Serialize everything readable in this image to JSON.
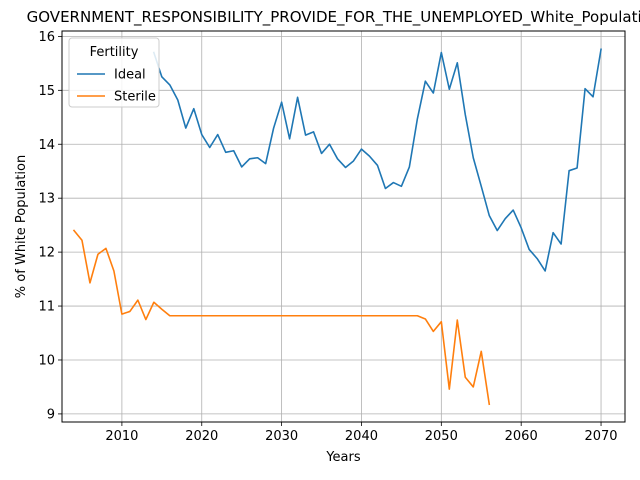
{
  "chart_data": {
    "type": "line",
    "title": "GOVERNMENT_RESPONSIBILITY_PROVIDE_FOR_THE_UNEMPLOYED_White_Population",
    "xlabel": "Years",
    "ylabel": "% of White Population",
    "xlim": [
      2002.5,
      2073.0
    ],
    "ylim": [
      8.85,
      16.1
    ],
    "xticks": [
      2010,
      2020,
      2030,
      2040,
      2050,
      2060,
      2070
    ],
    "yticks": [
      9,
      10,
      11,
      12,
      13,
      14,
      15,
      16
    ],
    "grid": true,
    "legend": {
      "title": "Fertility",
      "placement": "upper-left"
    },
    "series": [
      {
        "name": "Ideal",
        "color": "#1f77b4",
        "x": [
          2014,
          2015,
          2016,
          2017,
          2018,
          2019,
          2020,
          2021,
          2022,
          2023,
          2024,
          2025,
          2026,
          2027,
          2028,
          2029,
          2030,
          2031,
          2032,
          2033,
          2034,
          2035,
          2036,
          2037,
          2038,
          2039,
          2040,
          2041,
          2042,
          2043,
          2044,
          2045,
          2046,
          2047,
          2048,
          2049,
          2050,
          2051,
          2052,
          2053,
          2054,
          2055,
          2056,
          2057,
          2058,
          2059,
          2060,
          2061,
          2062,
          2063,
          2064,
          2065,
          2066,
          2067,
          2068,
          2069,
          2070
        ],
        "y": [
          15.7,
          15.25,
          15.1,
          14.82,
          14.3,
          14.66,
          14.18,
          13.94,
          14.18,
          13.85,
          13.88,
          13.58,
          13.73,
          13.75,
          13.64,
          14.3,
          14.78,
          14.1,
          14.87,
          14.17,
          14.23,
          13.83,
          14.0,
          13.73,
          13.57,
          13.69,
          13.91,
          13.78,
          13.61,
          13.18,
          13.29,
          13.22,
          13.58,
          14.47,
          15.17,
          14.95,
          15.7,
          15.02,
          15.51,
          14.55,
          13.75,
          13.22,
          12.68,
          12.4,
          12.62,
          12.78,
          12.45,
          12.05,
          11.88,
          11.65,
          12.36,
          12.15,
          13.51,
          13.56,
          15.03,
          14.88,
          15.76
        ]
      },
      {
        "name": "Sterile",
        "color": "#ff7f0e",
        "x": [
          2004,
          2005,
          2006,
          2007,
          2008,
          2009,
          2010,
          2011,
          2012,
          2013,
          2014,
          2015,
          2016,
          2017,
          2018,
          2019,
          2020,
          2021,
          2022,
          2023,
          2024,
          2025,
          2026,
          2027,
          2028,
          2029,
          2030,
          2031,
          2032,
          2033,
          2034,
          2035,
          2036,
          2037,
          2038,
          2039,
          2040,
          2041,
          2042,
          2043,
          2044,
          2045,
          2046,
          2047,
          2048,
          2049,
          2050,
          2051,
          2052,
          2053,
          2054,
          2055,
          2056
        ],
        "y": [
          12.4,
          12.22,
          11.43,
          11.96,
          12.07,
          11.65,
          10.85,
          10.9,
          11.11,
          10.75,
          11.07,
          10.94,
          10.82,
          10.82,
          10.82,
          10.82,
          10.82,
          10.82,
          10.82,
          10.82,
          10.82,
          10.82,
          10.82,
          10.82,
          10.82,
          10.82,
          10.82,
          10.82,
          10.82,
          10.82,
          10.82,
          10.82,
          10.82,
          10.82,
          10.82,
          10.82,
          10.82,
          10.82,
          10.82,
          10.82,
          10.82,
          10.82,
          10.82,
          10.82,
          10.76,
          10.53,
          10.71,
          9.46,
          10.74,
          9.68,
          9.5,
          10.16,
          9.18
        ]
      }
    ]
  }
}
